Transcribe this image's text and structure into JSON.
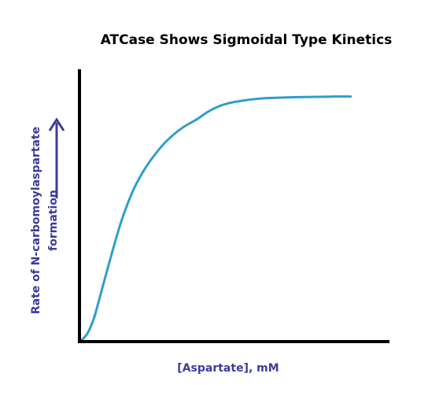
{
  "chart_data": {
    "type": "line",
    "title": "ATCase Shows Sigmoidal Type Kinetics",
    "xlabel": "[Aspartate],  mM",
    "ylabel_lines": [
      "Rate of N-carbomoylaspartate",
      "formation"
    ],
    "xlim": [
      0,
      10
    ],
    "ylim": [
      0,
      10
    ],
    "grid": false,
    "legend": "none",
    "series": [
      {
        "x": [
          0,
          0.15,
          0.3,
          0.5,
          0.8,
          1.1,
          1.4,
          1.75,
          2.1,
          2.5,
          2.9,
          3.4,
          3.9,
          4.2,
          4.6,
          5.0,
          5.5,
          6.0,
          6.5,
          7.0,
          7.5,
          8.0,
          8.5,
          9.0
        ],
        "y": [
          0,
          0.15,
          0.4,
          1.0,
          2.3,
          3.6,
          4.8,
          5.9,
          6.7,
          7.4,
          7.95,
          8.45,
          8.8,
          9.05,
          9.3,
          9.45,
          9.55,
          9.62,
          9.65,
          9.67,
          9.68,
          9.69,
          9.7,
          9.7
        ]
      }
    ]
  },
  "colors": {
    "curve": "#2f9fc8",
    "axes": "#000000",
    "label": "#3c3c9a",
    "arrow": "#3c3c9a"
  }
}
